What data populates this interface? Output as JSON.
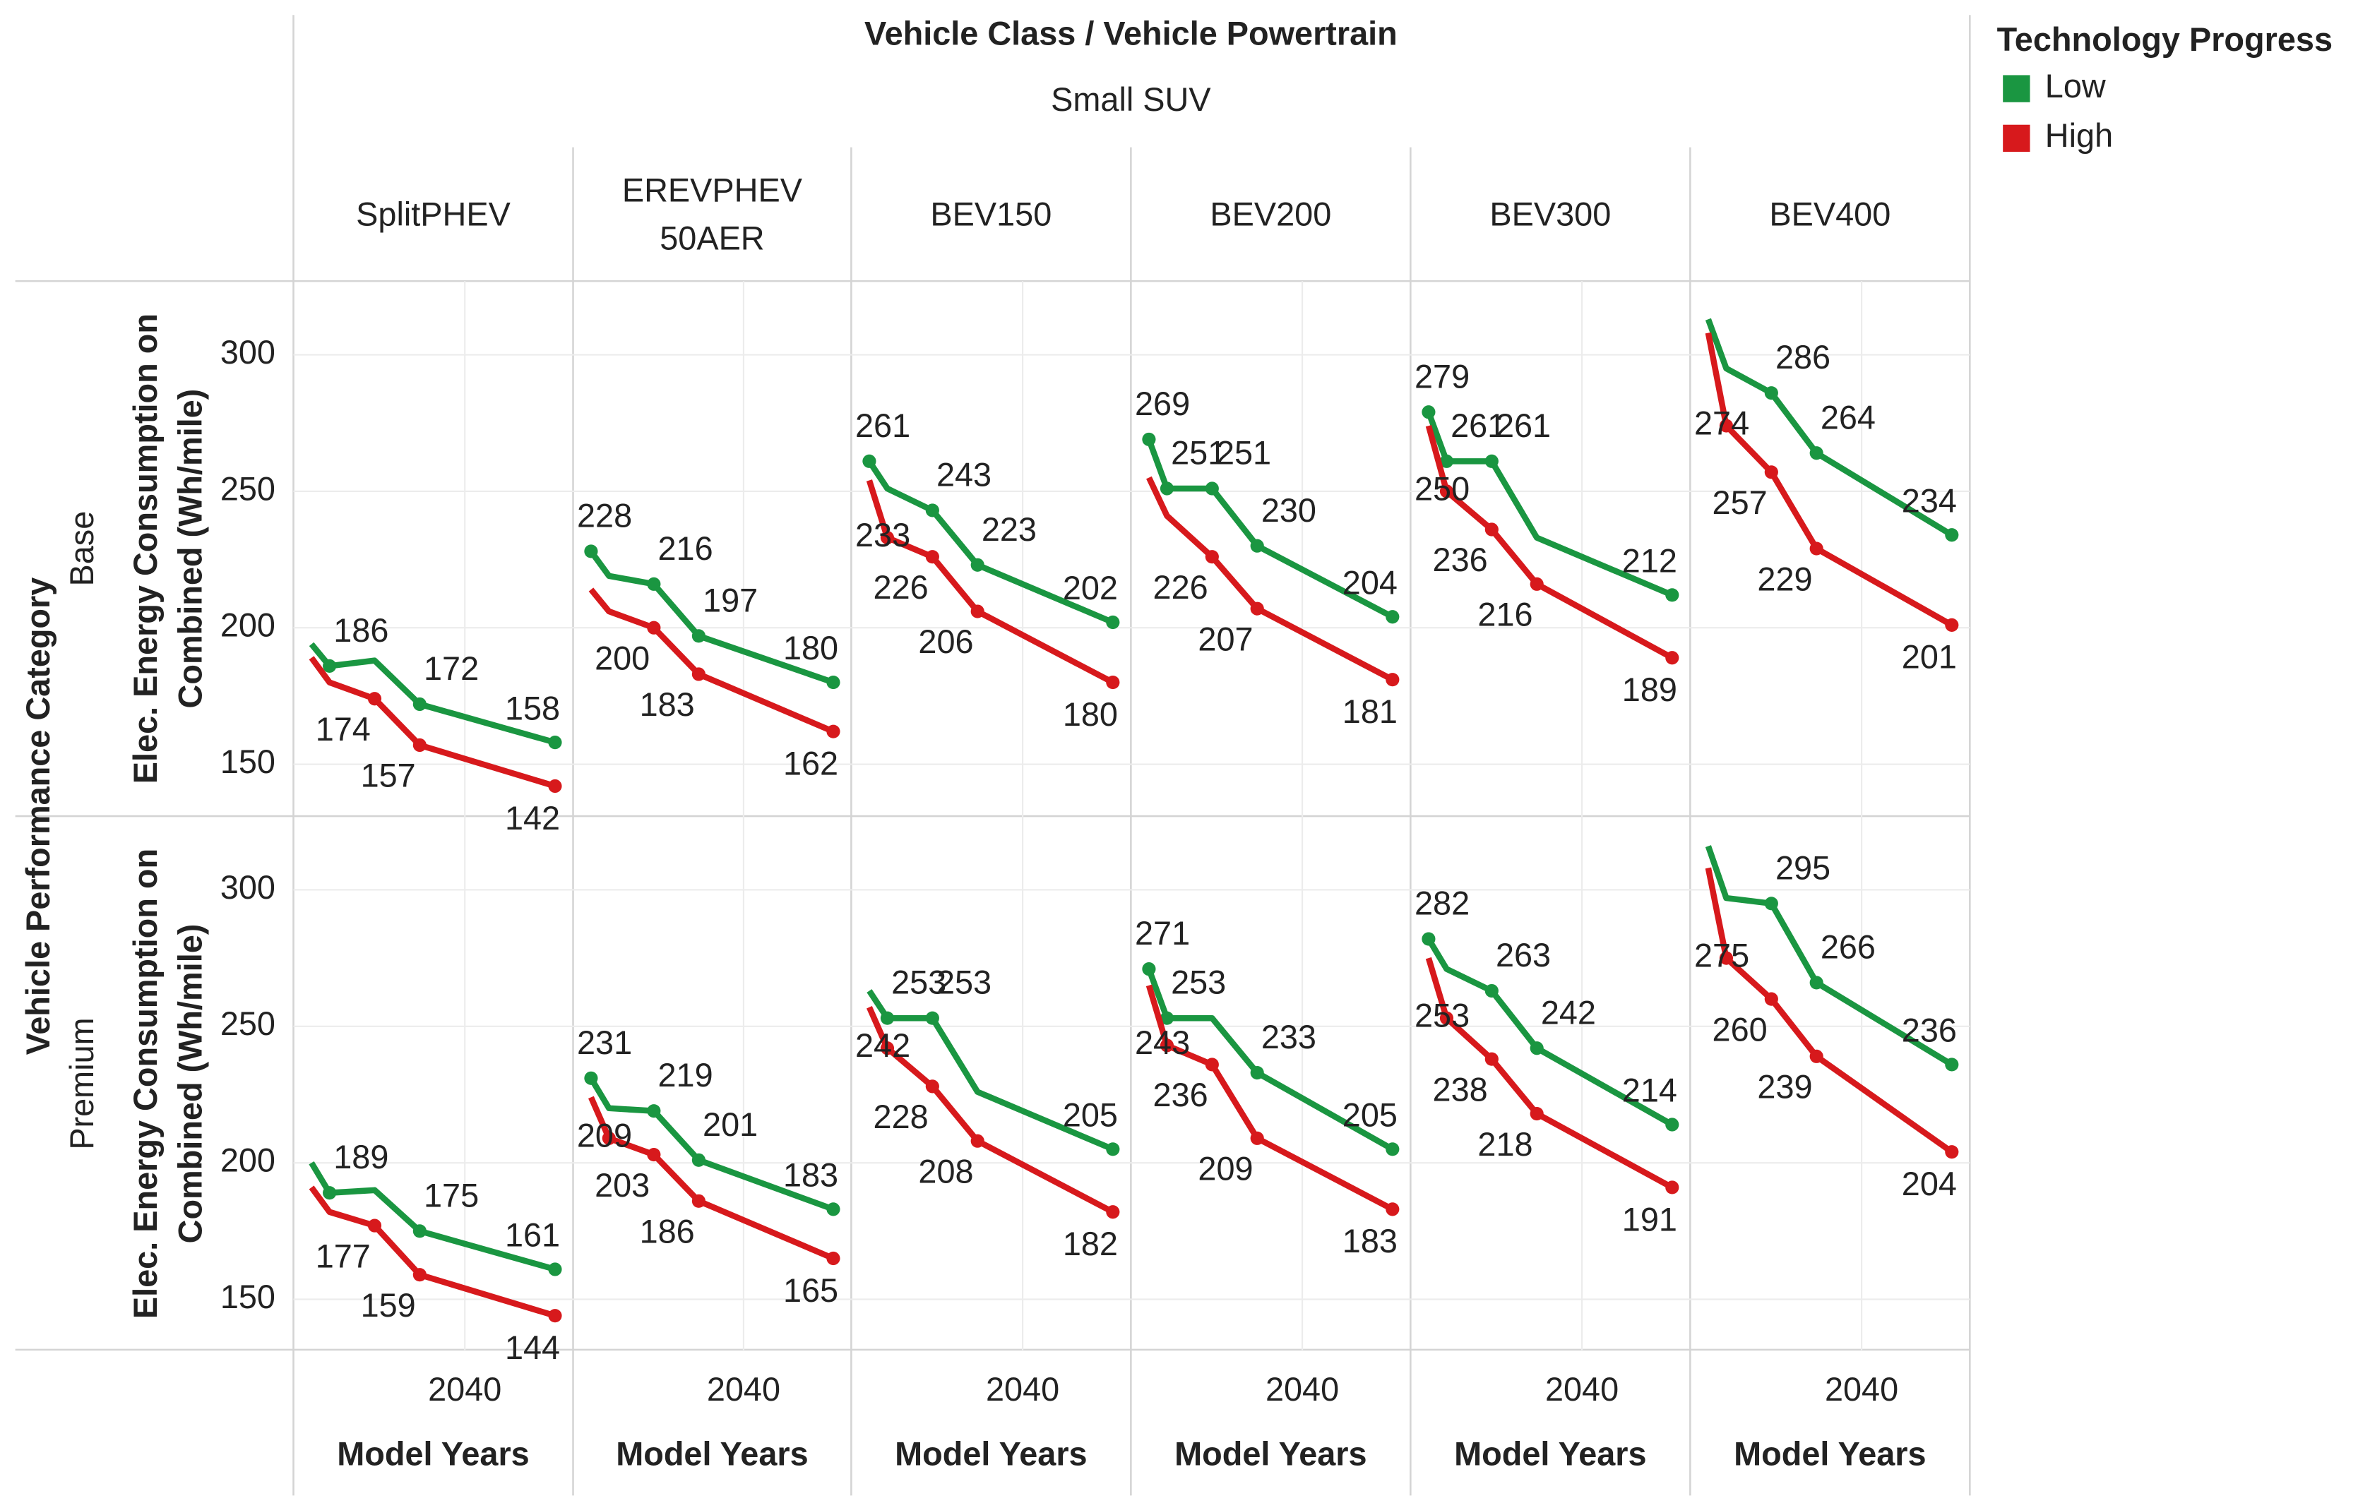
{
  "chart_data": {
    "type": "line",
    "title": "Vehicle Class / Vehicle Powertrain",
    "vehicle_class": "Small SUV",
    "columns": [
      "SplitPHEV",
      "EREVPHEV 50AER",
      "BEV150",
      "BEV200",
      "BEV300",
      "BEV400"
    ],
    "row_title": "Vehicle Performance Category",
    "rows": [
      "Base",
      "Premium"
    ],
    "x_label": "Model Years",
    "y_label": "Elec. Energy Consumption on Combined (Wh/mile)",
    "legend_title": "Technology Progress",
    "x": [
      2023,
      2025,
      2030,
      2035,
      2050
    ],
    "xlim": [
      2021,
      2052
    ],
    "xticks": [
      2040
    ],
    "ylim": [
      131,
      327
    ],
    "yticks": [
      150,
      200,
      250,
      300
    ],
    "grid": true,
    "series": [
      {
        "name": "Low",
        "color": "#1a9641",
        "values": [
          [
            [
              194,
              186,
              188,
              172,
              158
            ],
            [
              228,
              219,
              216,
              197,
              180
            ],
            [
              261,
              251,
              243,
              223,
              202
            ],
            [
              269,
              251,
              251,
              230,
              204
            ],
            [
              279,
              261,
              261,
              233,
              212
            ],
            [
              313,
              295,
              286,
              264,
              234
            ]
          ],
          [
            [
              200,
              189,
              190,
              175,
              161
            ],
            [
              231,
              220,
              219,
              201,
              183
            ],
            [
              263,
              253,
              253,
              226,
              205
            ],
            [
              271,
              253,
              253,
              233,
              205
            ],
            [
              282,
              271,
              263,
              242,
              214
            ],
            [
              316,
              297,
              295,
              266,
              236
            ]
          ]
        ],
        "value_labels": [
          [
            [
              null,
              "186",
              null,
              "172",
              "158"
            ],
            [
              "228",
              null,
              "216",
              "197",
              "180"
            ],
            [
              "261",
              null,
              "243",
              "223",
              "202"
            ],
            [
              "269",
              "251",
              "251",
              "230",
              "204"
            ],
            [
              "279",
              "261",
              "261",
              null,
              "212"
            ],
            [
              null,
              null,
              "286",
              "264",
              "234"
            ]
          ],
          [
            [
              null,
              "189",
              null,
              "175",
              "161"
            ],
            [
              "231",
              null,
              "219",
              "201",
              "183"
            ],
            [
              null,
              "253",
              "253",
              null,
              "205"
            ],
            [
              "271",
              "253",
              null,
              "233",
              "205"
            ],
            [
              "282",
              null,
              "263",
              "242",
              "214"
            ],
            [
              null,
              null,
              "295",
              "266",
              "236"
            ]
          ]
        ]
      },
      {
        "name": "High",
        "color": "#d7191c",
        "values": [
          [
            [
              189,
              180,
              174,
              157,
              142
            ],
            [
              214,
              206,
              200,
              183,
              162
            ],
            [
              254,
              233,
              226,
              206,
              180
            ],
            [
              255,
              241,
              226,
              207,
              181
            ],
            [
              274,
              250,
              236,
              216,
              189
            ],
            [
              308,
              274,
              257,
              229,
              201
            ]
          ],
          [
            [
              191,
              182,
              177,
              159,
              144
            ],
            [
              224,
              209,
              203,
              186,
              165
            ],
            [
              257,
              242,
              228,
              208,
              182
            ],
            [
              265,
              243,
              236,
              209,
              183
            ],
            [
              275,
              253,
              238,
              218,
              191
            ],
            [
              308,
              275,
              260,
              239,
              204
            ]
          ]
        ],
        "value_labels": [
          [
            [
              null,
              null,
              "174",
              "157",
              "142"
            ],
            [
              null,
              null,
              "200",
              "183",
              "162"
            ],
            [
              null,
              "233",
              "226",
              "206",
              "180"
            ],
            [
              null,
              null,
              "226",
              "207",
              "181"
            ],
            [
              null,
              "250",
              "236",
              "216",
              "189"
            ],
            [
              null,
              "274",
              "257",
              "229",
              "201"
            ]
          ],
          [
            [
              null,
              null,
              "177",
              "159",
              "144"
            ],
            [
              null,
              "209",
              "203",
              "186",
              "165"
            ],
            [
              null,
              "242",
              "228",
              "208",
              "182"
            ],
            [
              null,
              "243",
              "236",
              "209",
              "183"
            ],
            [
              null,
              "253",
              "238",
              "218",
              "191"
            ],
            [
              null,
              "275",
              "260",
              "239",
              "204"
            ]
          ]
        ]
      }
    ]
  }
}
